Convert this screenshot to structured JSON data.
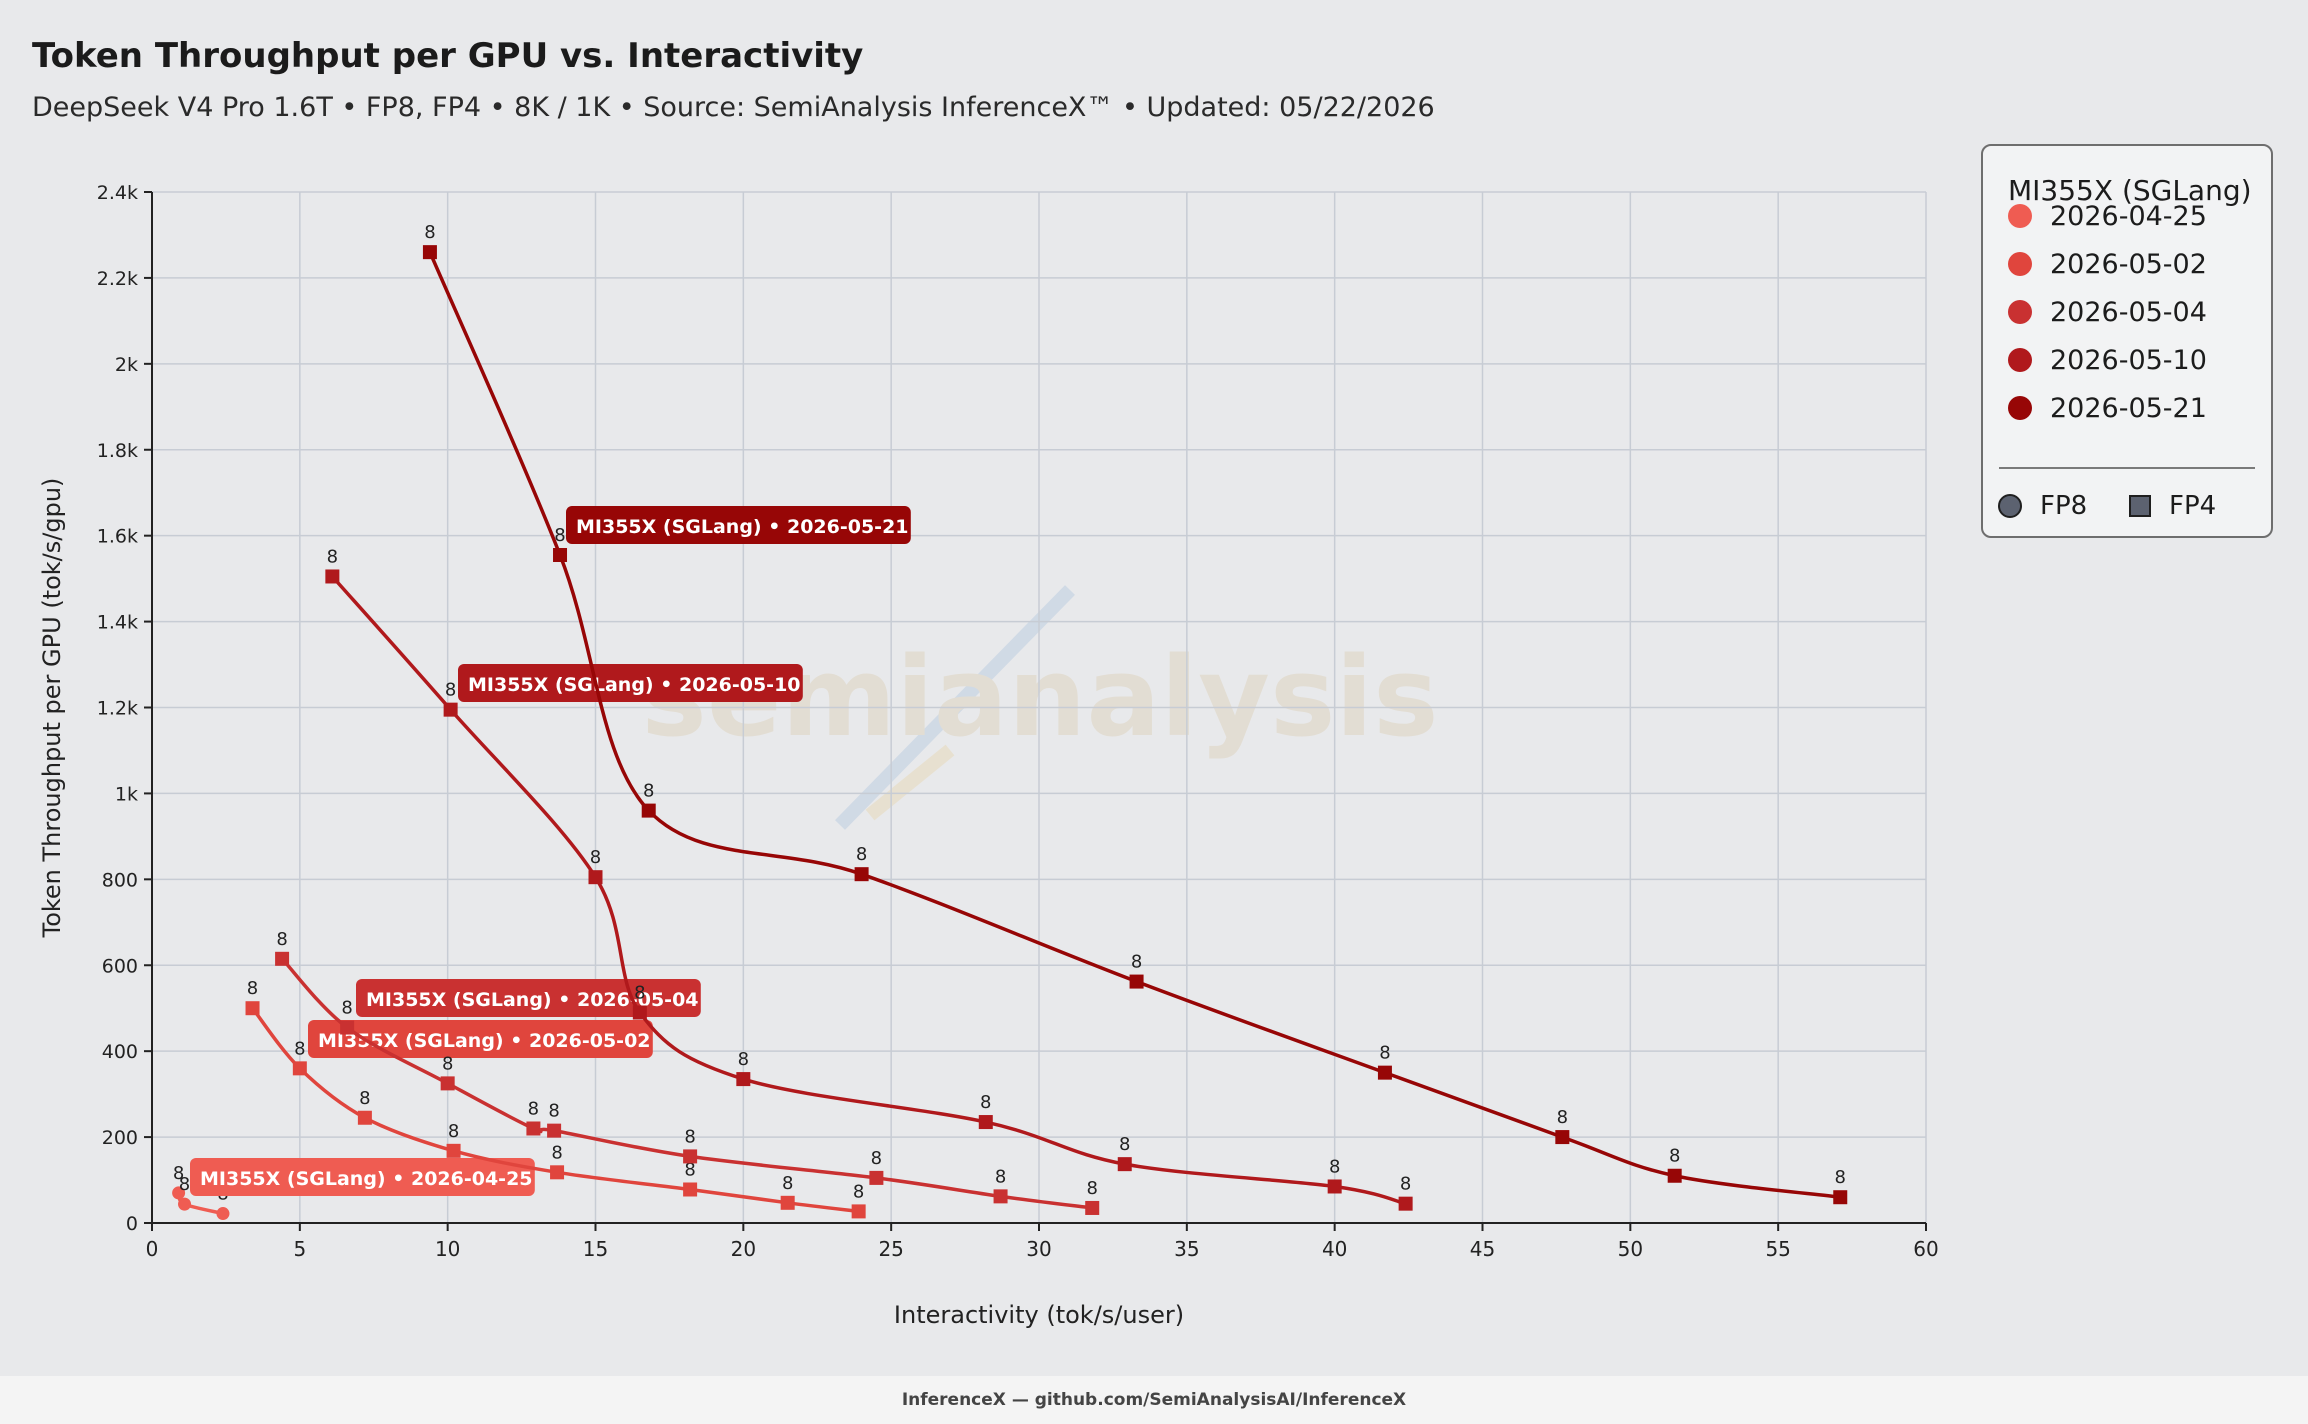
{
  "header": {
    "title": "Token Throughput per GPU vs. Interactivity",
    "subtitle": "DeepSeek V4 Pro 1.6T • FP8, FP4 • 8K / 1K • Source: SemiAnalysis InferenceX™ • Updated: 05/22/2026"
  },
  "legend": {
    "title": "MI355X (SGLang)",
    "items": [
      {
        "label": "2026-04-25",
        "color": "#ef5c52"
      },
      {
        "label": "2026-05-02",
        "color": "#e0453d"
      },
      {
        "label": "2026-05-04",
        "color": "#c93131"
      },
      {
        "label": "2026-05-10",
        "color": "#b0191c"
      },
      {
        "label": "2026-05-21",
        "color": "#970606"
      }
    ],
    "shapes": [
      {
        "label": "FP8",
        "shape": "circle"
      },
      {
        "label": "FP4",
        "shape": "square"
      }
    ]
  },
  "watermark": "semianalysis",
  "footer": "InferenceX — github.com/SemiAnalysisAI/InferenceX",
  "chart_data": {
    "type": "line",
    "title": "Token Throughput per GPU vs. Interactivity",
    "xlabel": "Interactivity (tok/s/user)",
    "ylabel": "Token Throughput per GPU (tok/s/gpu)",
    "xlim": [
      0,
      60
    ],
    "ylim": [
      0,
      2400
    ],
    "xticks": [
      "0",
      "5",
      "10",
      "15",
      "20",
      "25",
      "30",
      "35",
      "40",
      "45",
      "50",
      "55",
      "60"
    ],
    "yticks": [
      "0",
      "200",
      "400",
      "600",
      "800",
      "1k",
      "1.2k",
      "1.4k",
      "1.6k",
      "1.8k",
      "2k",
      "2.2k",
      "2.4k"
    ],
    "grid": true,
    "legend_position": "right",
    "series": [
      {
        "name": "MI355X (SGLang) • 2026-04-25",
        "color": "#ef5c52",
        "marker": "circle",
        "point_label": "8",
        "points": [
          [
            0.9,
            70
          ],
          [
            1.1,
            44
          ],
          [
            2.4,
            22
          ]
        ]
      },
      {
        "name": "MI355X (SGLang) • 2026-05-02",
        "color": "#e0453d",
        "marker": "square",
        "point_label": "8",
        "points": [
          [
            3.4,
            500
          ],
          [
            5.0,
            360
          ],
          [
            7.2,
            245
          ],
          [
            10.2,
            168
          ],
          [
            13.7,
            118
          ],
          [
            18.2,
            78
          ],
          [
            21.5,
            47
          ],
          [
            23.9,
            27
          ]
        ]
      },
      {
        "name": "MI355X (SGLang) • 2026-05-04",
        "color": "#c93131",
        "marker": "square",
        "point_label": "8",
        "points": [
          [
            4.4,
            615
          ],
          [
            6.6,
            455
          ],
          [
            10.0,
            325
          ],
          [
            12.9,
            220
          ],
          [
            13.6,
            215
          ],
          [
            18.2,
            155
          ],
          [
            24.5,
            105
          ],
          [
            28.7,
            62
          ],
          [
            31.8,
            35
          ]
        ]
      },
      {
        "name": "MI355X (SGLang) • 2026-05-10",
        "color": "#b0191c",
        "marker": "square",
        "point_label": "8",
        "points": [
          [
            6.1,
            1505
          ],
          [
            10.1,
            1195
          ],
          [
            15.0,
            805
          ],
          [
            16.5,
            490
          ],
          [
            20.0,
            335
          ],
          [
            28.2,
            235
          ],
          [
            32.9,
            137
          ],
          [
            40.0,
            85
          ],
          [
            42.4,
            45
          ]
        ]
      },
      {
        "name": "MI355X (SGLang) • 2026-05-21",
        "color": "#970606",
        "marker": "square",
        "point_label": "8",
        "points": [
          [
            9.4,
            2260
          ],
          [
            13.8,
            1555
          ],
          [
            16.8,
            960
          ],
          [
            24.0,
            812
          ],
          [
            33.3,
            562
          ],
          [
            41.7,
            350
          ],
          [
            47.7,
            200
          ],
          [
            51.5,
            110
          ],
          [
            57.1,
            60
          ]
        ]
      }
    ]
  }
}
